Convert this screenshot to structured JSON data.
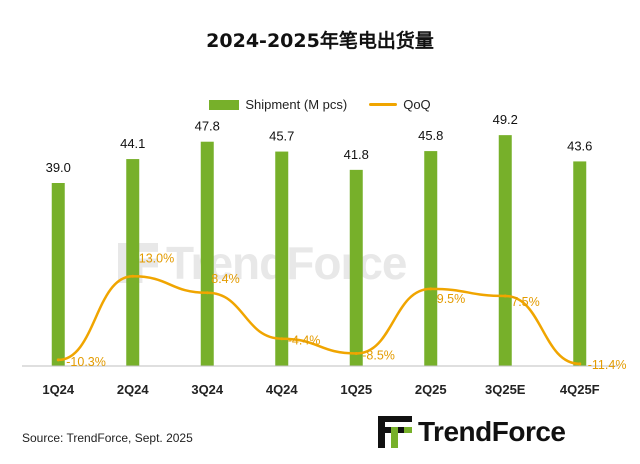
{
  "title": "2024-2025年笔电出货量",
  "legend": {
    "bar_label": "Shipment (M pcs)",
    "line_label": "QoQ"
  },
  "source": "Source: TrendForce, Sept. 2025",
  "logo": {
    "text": "TrendForce"
  },
  "watermark": {
    "text": "TrendForce"
  },
  "colors": {
    "bar": "#77B02A",
    "line": "#F0A500",
    "line_label": "#E39B00"
  },
  "chart_data": {
    "type": "bar",
    "categories": [
      "1Q24",
      "2Q24",
      "3Q24",
      "4Q24",
      "1Q25",
      "2Q25",
      "3Q25E",
      "4Q25F"
    ],
    "series": [
      {
        "name": "Shipment (M pcs)",
        "type": "bar",
        "values": [
          39.0,
          44.1,
          47.8,
          45.7,
          41.8,
          45.8,
          49.2,
          43.6
        ],
        "labels": [
          "39.0",
          "44.1",
          "47.8",
          "45.7",
          "41.8",
          "45.8",
          "49.2",
          "43.6"
        ]
      },
      {
        "name": "QoQ",
        "type": "line",
        "values": [
          -10.3,
          13.0,
          8.4,
          -4.4,
          -8.5,
          9.5,
          7.5,
          -11.4
        ],
        "labels": [
          "-10.3%",
          "13.0%",
          "8.4%",
          "-4.4%",
          "-8.5%",
          "9.5%",
          "7.5%",
          "-11.4%"
        ]
      }
    ],
    "bar_ylim": [
      0,
      52
    ],
    "line_ylim": [
      -12,
      56
    ],
    "legend_position": "top-center",
    "grid": false
  }
}
